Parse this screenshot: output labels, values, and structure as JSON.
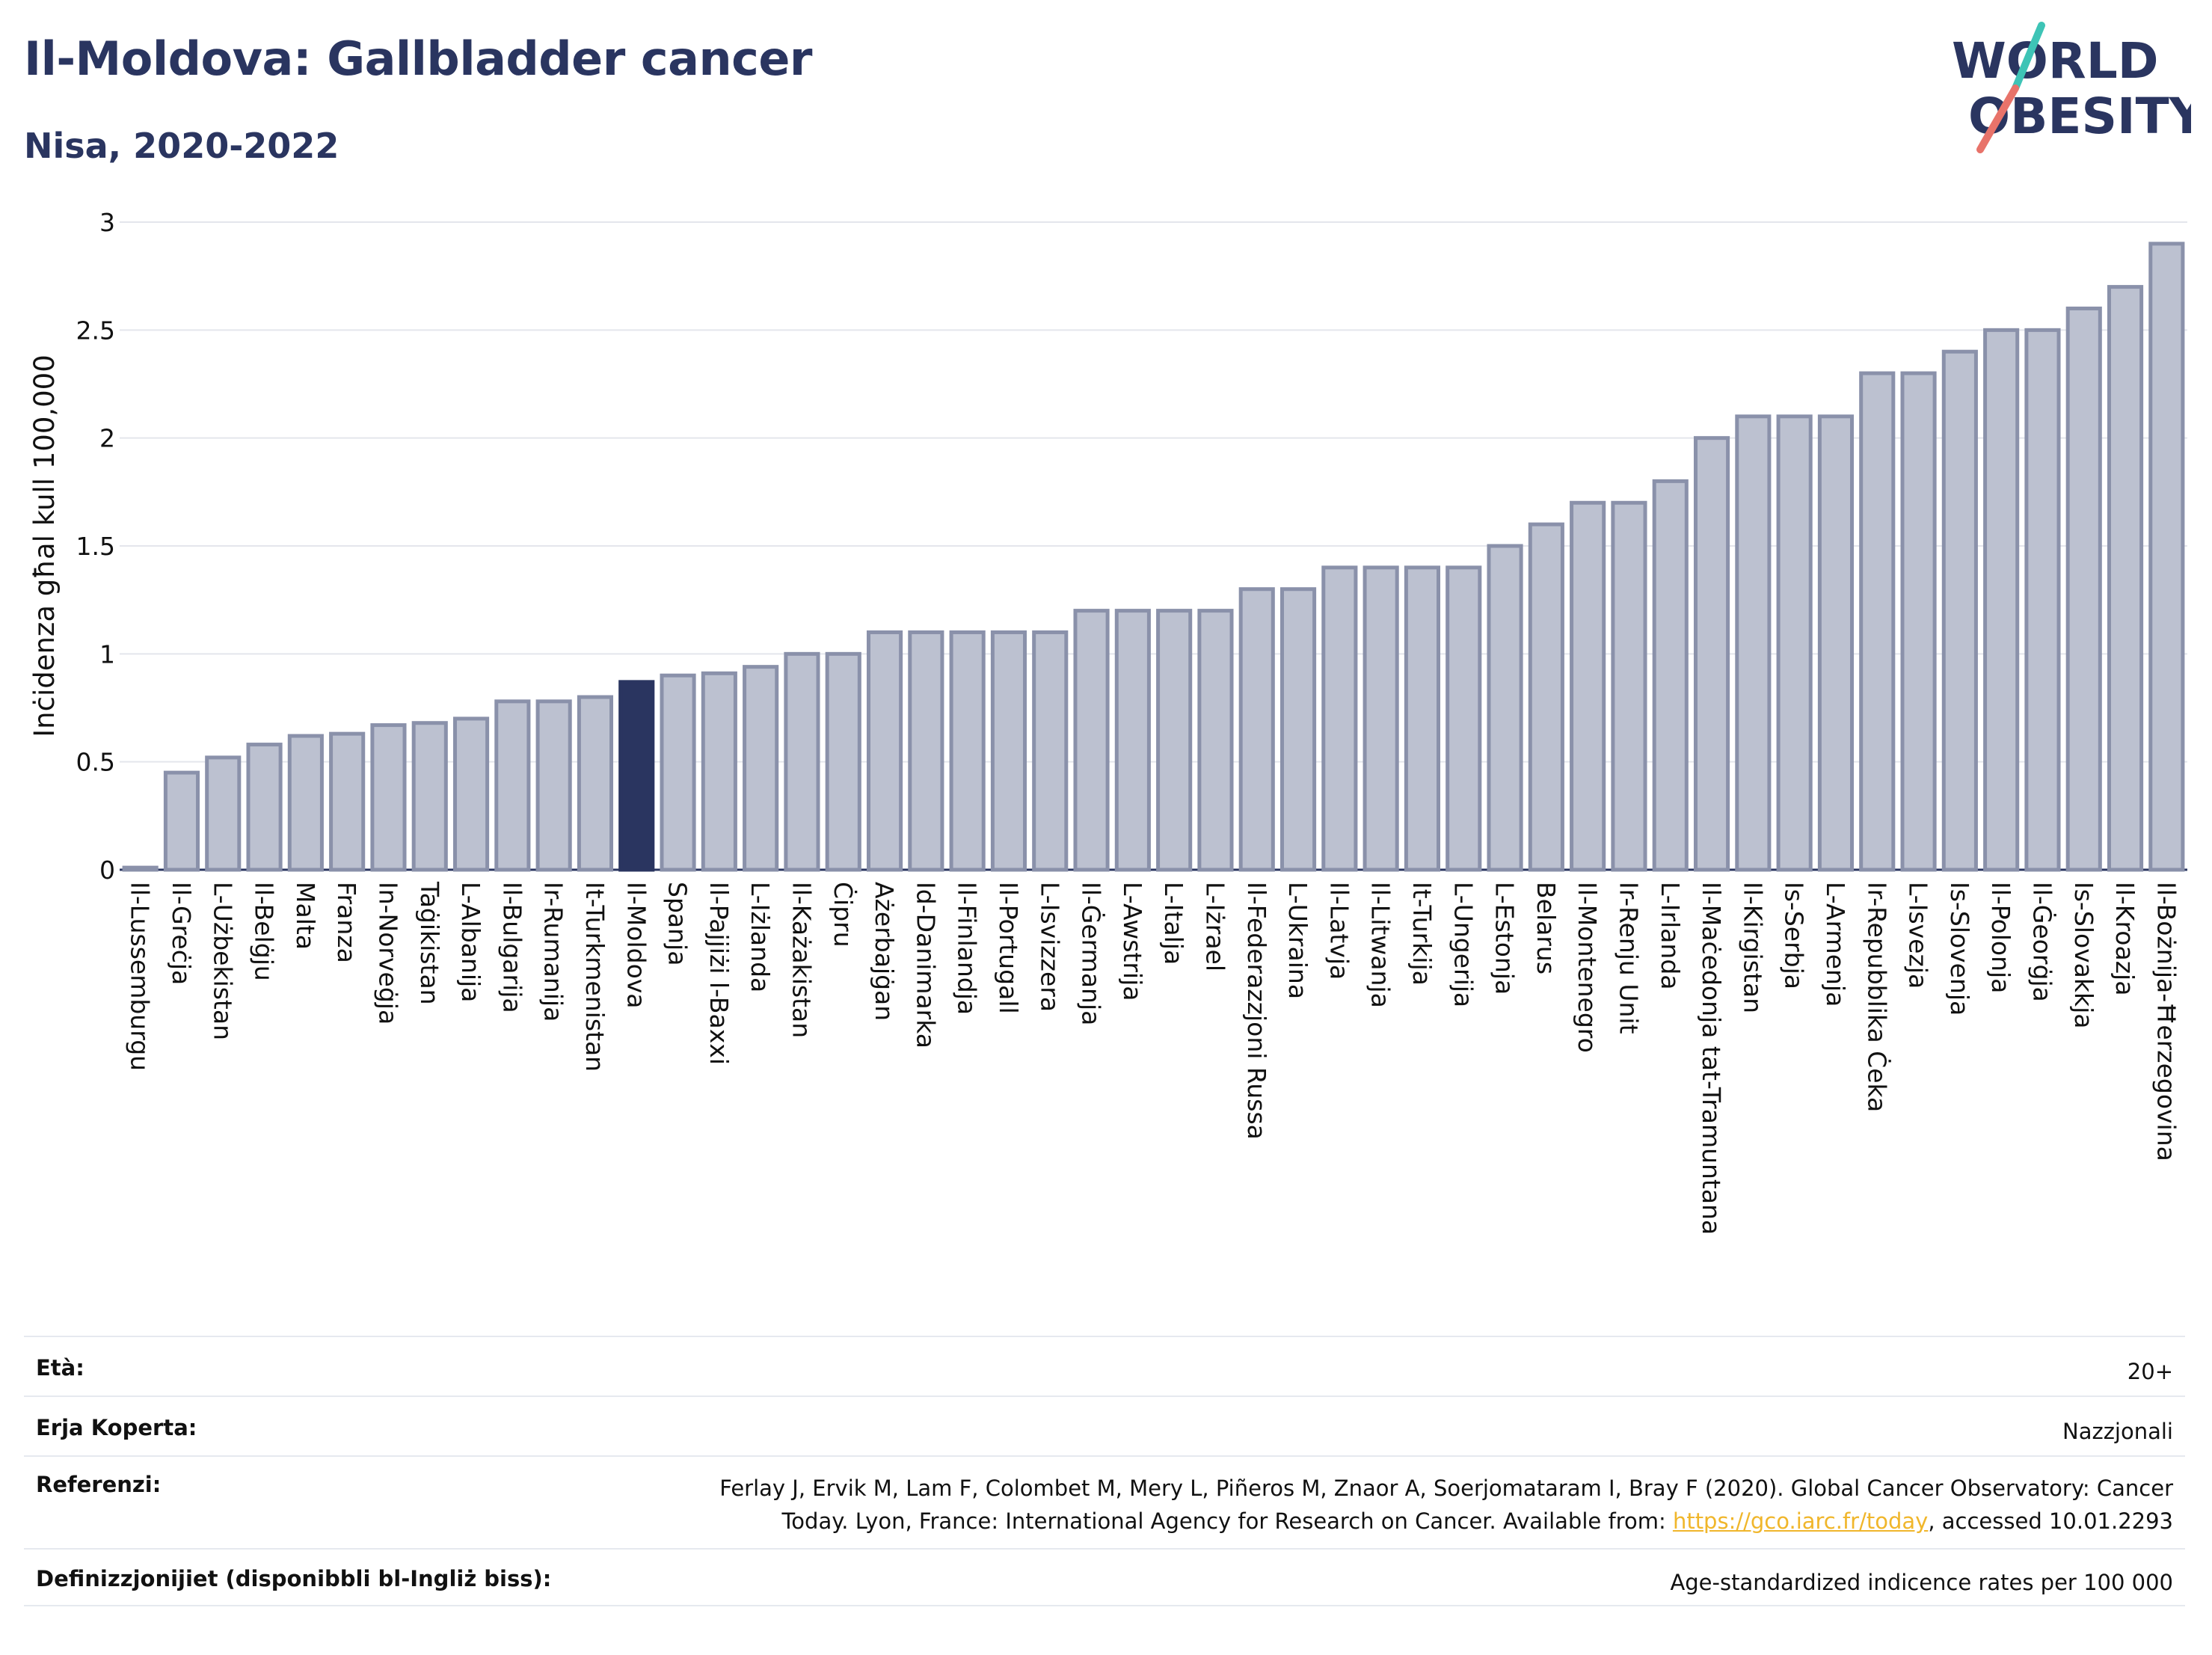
{
  "header": {
    "title": "Il-Moldova: Gallbladder cancer",
    "subtitle": "Nisa, 2020-2022"
  },
  "logo": {
    "line1": "WORLD",
    "line2": "OBESITY",
    "text_color": "#2a3560",
    "slash_colors": [
      "#3ec4b6",
      "#e8736a"
    ]
  },
  "chart_data": {
    "type": "bar",
    "ylabel": "Inċidenza għal kull 100,000",
    "ylim": [
      0,
      3
    ],
    "yticks": [
      0,
      0.5,
      1,
      1.5,
      2,
      2.5,
      3
    ],
    "ytick_labels": [
      "0",
      "0.5",
      "1",
      "1.5",
      "2",
      "2.5",
      "3"
    ],
    "grid": true,
    "bar_color": "#bcc1d0",
    "bar_edge_color": "#8a91aa",
    "highlight_color": "#2a3560",
    "highlight_category": "Il-Moldova",
    "categories": [
      "Il-Lussemburgu",
      "Il-Greċja",
      "L-Użbekistan",
      "Il-Belġju",
      "Malta",
      "Franza",
      "In-Norveġja",
      "Taġikistan",
      "L-Albanija",
      "Il-Bulgarija",
      "Ir-Rumanija",
      "It-Turkmenistan",
      "Il-Moldova",
      "Spanja",
      "Il-Pajjiżi l-Baxxi",
      "L-Iżlanda",
      "Il-Każakistan",
      "Ċipru",
      "Ażerbajġan",
      "Id-Danimarka",
      "Il-Finlandja",
      "Il-Portugall",
      "L-Isvizzera",
      "Il-Ġermanja",
      "L-Awstrija",
      "L-Italja",
      "L-Iżrael",
      "Il-Federazzjoni Russa",
      "L-Ukraina",
      "Il-Latvja",
      "Il-Litwanja",
      "It-Turkija",
      "L-Ungerija",
      "L-Estonja",
      "Belarus",
      "Il-Montenegro",
      "Ir-Renju Unit",
      "L-Irlanda",
      "Il-Maċedonja tat-Tramuntana",
      "Il-Kirgistan",
      "Is-Serbja",
      "L-Armenja",
      "Ir-Repubblika Ċeka",
      "L-Isvezja",
      "Is-Slovenja",
      "Il-Polonja",
      "Il-Ġeorġja",
      "Is-Slovakkja",
      "Il-Kroazja",
      "Il-Bożnija-Ħerzegovina"
    ],
    "values": [
      0.01,
      0.45,
      0.52,
      0.58,
      0.62,
      0.63,
      0.67,
      0.68,
      0.7,
      0.78,
      0.78,
      0.8,
      0.87,
      0.9,
      0.91,
      0.94,
      1.0,
      1.0,
      1.1,
      1.1,
      1.1,
      1.1,
      1.1,
      1.2,
      1.2,
      1.2,
      1.2,
      1.3,
      1.3,
      1.4,
      1.4,
      1.4,
      1.4,
      1.5,
      1.6,
      1.7,
      1.7,
      1.8,
      2.0,
      2.1,
      2.1,
      2.1,
      2.3,
      2.3,
      2.4,
      2.5,
      2.5,
      2.6,
      2.7,
      2.9
    ]
  },
  "info": {
    "age_label": "Età:",
    "age_value": "20+",
    "coverage_label": "Erja Koperta:",
    "coverage_value": "Nazzjonali",
    "references_label": "Referenzi:",
    "references_line1": "Ferlay J, Ervik M, Lam F, Colombet M, Mery L, Piñeros M, Znaor A, Soerjomataram I, Bray F (2020). Global Cancer Observatory: Cancer",
    "references_line2_before": "Today. Lyon, France: International Agency for Research on Cancer. Available from: ",
    "references_link": "https://gco.iarc.fr/today",
    "references_line2_after": ", accessed 10.01.2293",
    "definitions_label": "Definizzjonijiet (disponibbli bl-Ingliż biss):",
    "definitions_value": "Age-standardized indicence rates per 100 000"
  }
}
